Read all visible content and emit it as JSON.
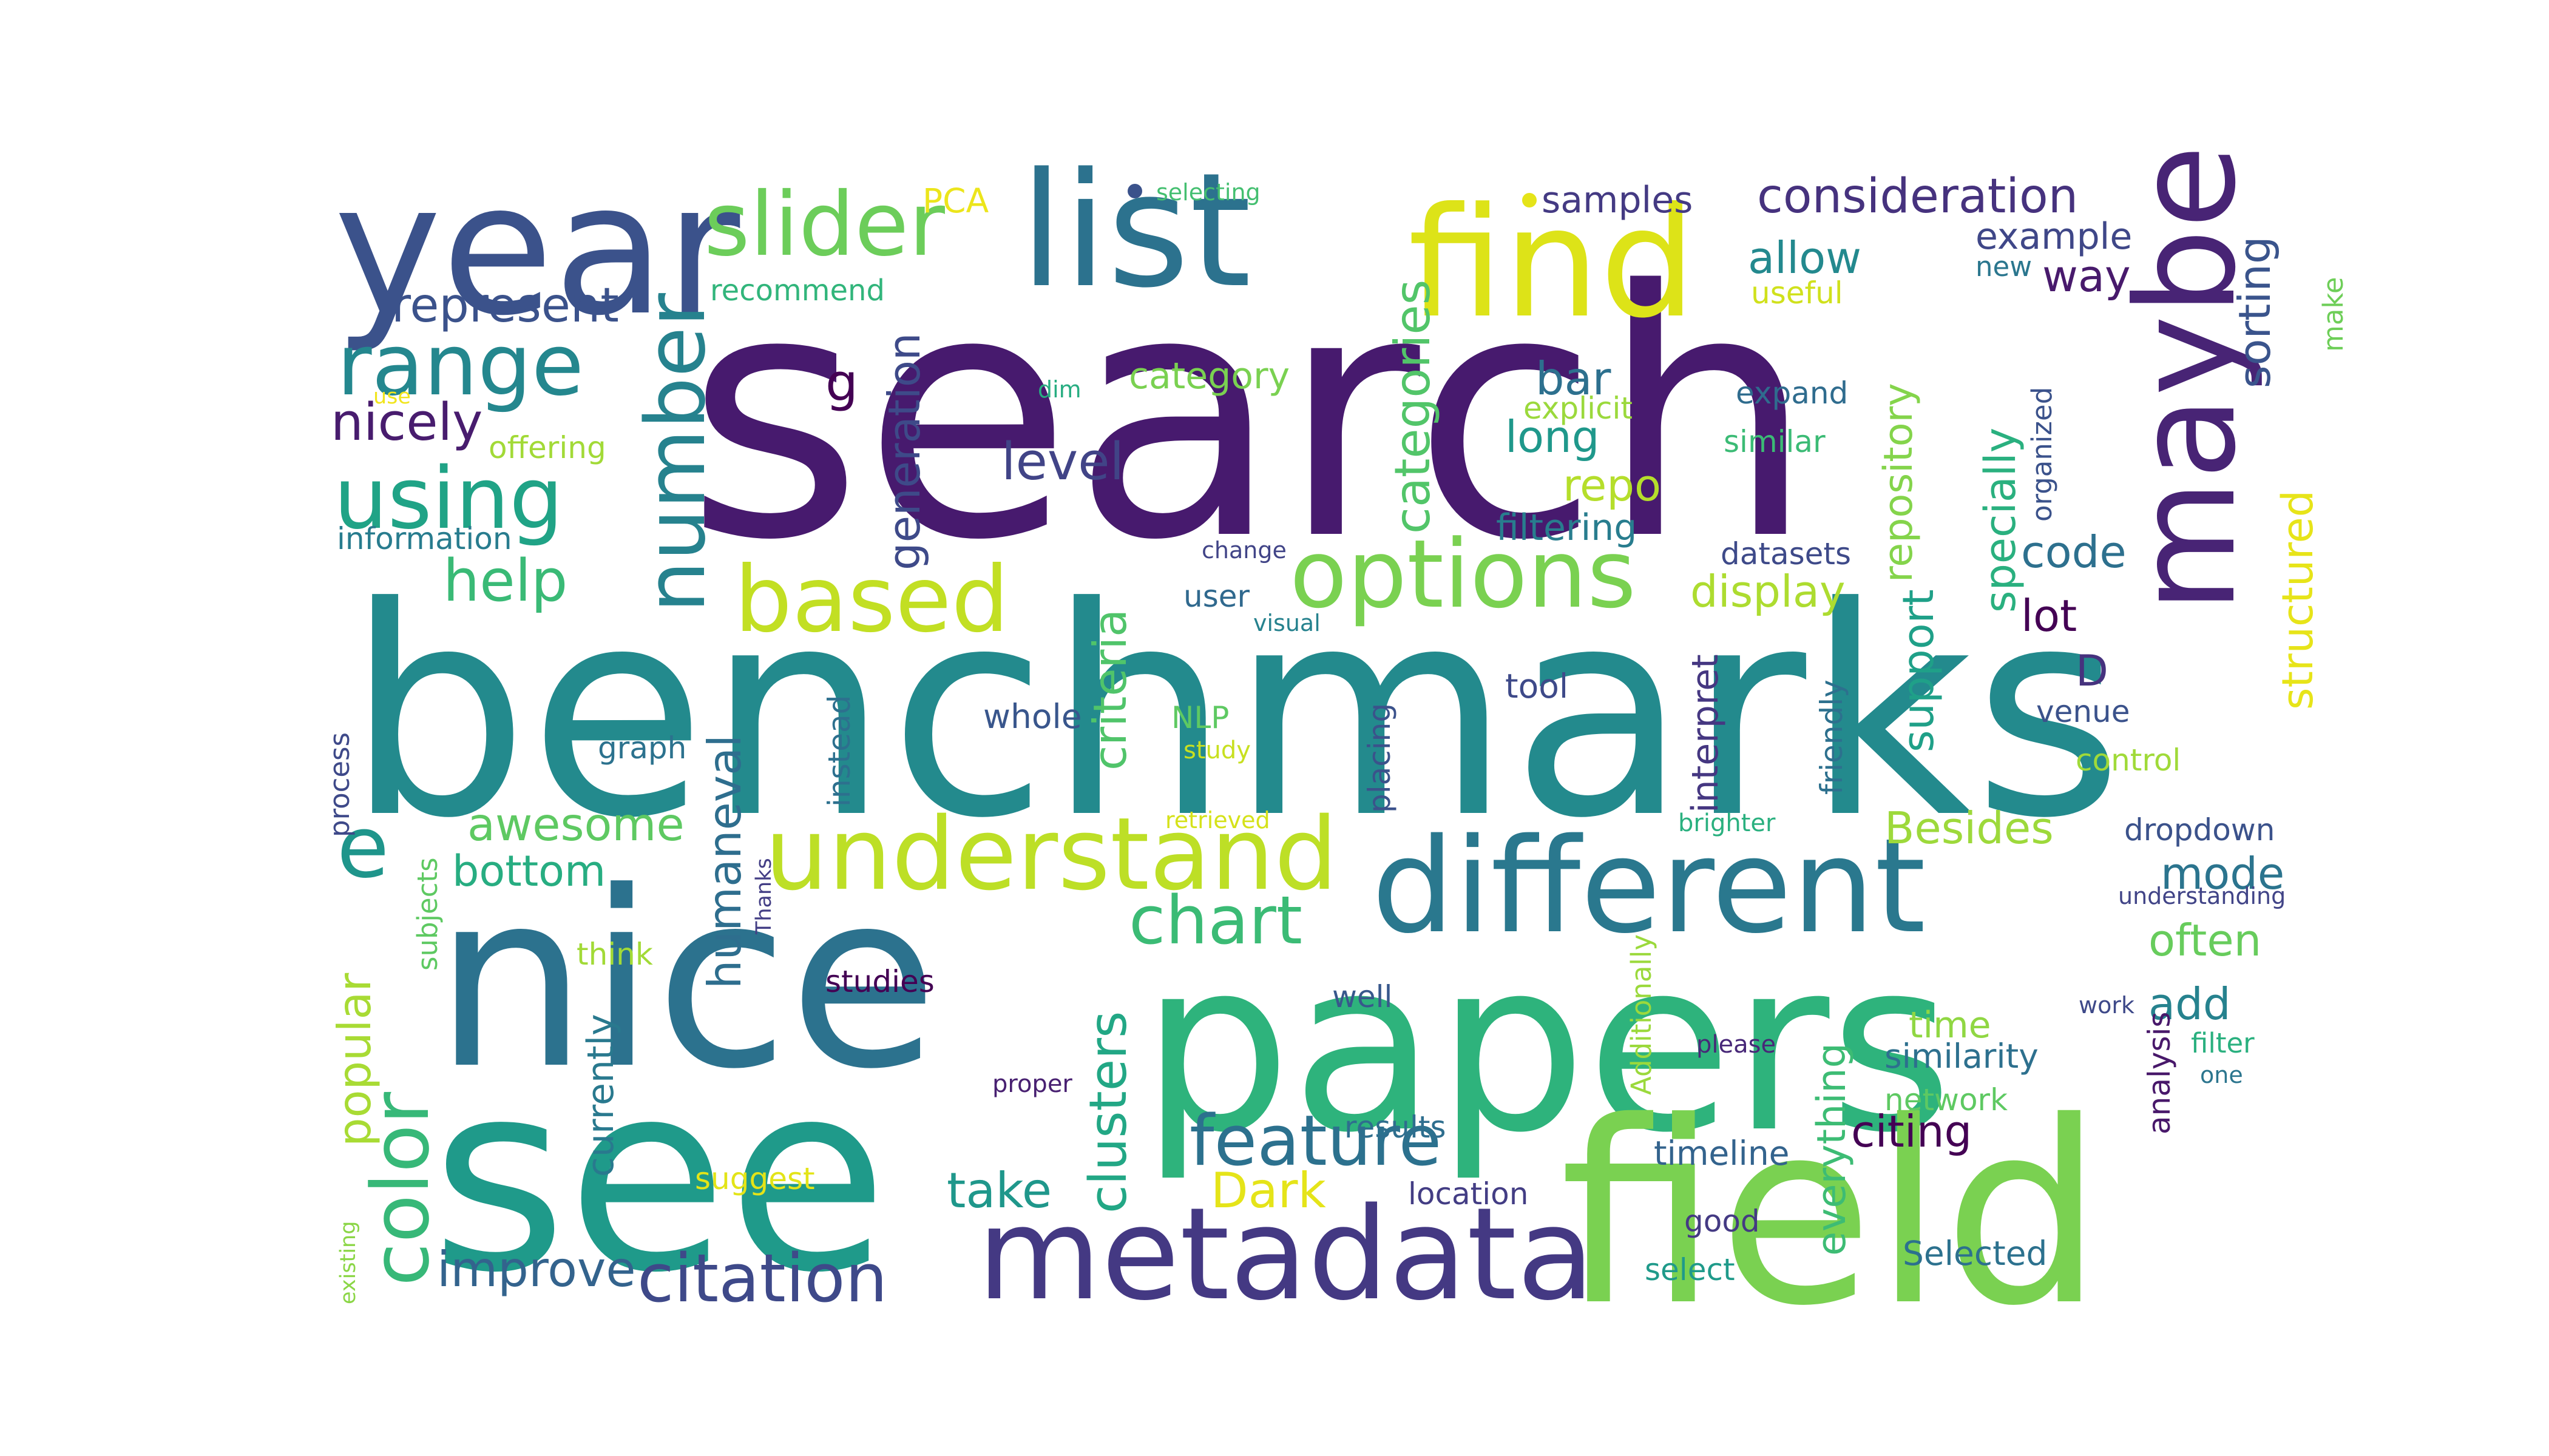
{
  "words": [
    {
      "text": "search",
      "color": "#471a6e"
    },
    {
      "text": "benchmarks",
      "color": "#238a8d"
    },
    {
      "text": "papers",
      "color": "#2eb37c"
    },
    {
      "text": "nice",
      "color": "#2c728e"
    },
    {
      "text": "see",
      "color": "#1f9a8a"
    },
    {
      "text": "field",
      "color": "#7ad151"
    },
    {
      "text": "year",
      "color": "#3b528b"
    },
    {
      "text": "metadata",
      "color": "#443983"
    },
    {
      "text": "different",
      "color": "#2a788e"
    },
    {
      "text": "find",
      "color": "#dde318"
    },
    {
      "text": "list",
      "color": "#2c728e"
    },
    {
      "text": "maybe",
      "color": "#482475"
    },
    {
      "text": "understand",
      "color": "#bddf26"
    },
    {
      "text": "options",
      "color": "#7ad151"
    },
    {
      "text": "slider",
      "color": "#6ccd5a"
    },
    {
      "text": "range",
      "color": "#24878e"
    },
    {
      "text": "using",
      "color": "#20a386"
    },
    {
      "text": "based",
      "color": "#c2df23"
    },
    {
      "text": "number",
      "color": "#26828e"
    },
    {
      "text": "e",
      "color": "#1f958b"
    },
    {
      "text": "color",
      "color": "#37b878"
    },
    {
      "text": "feature",
      "color": "#2c718e"
    },
    {
      "text": "citation",
      "color": "#3e4989"
    },
    {
      "text": "chart",
      "color": "#3bbb75"
    },
    {
      "text": "consideration",
      "color": "#46327e"
    },
    {
      "text": "help",
      "color": "#3aba76"
    },
    {
      "text": "represent",
      "color": "#3b528b"
    },
    {
      "text": "nicely",
      "color": "#481c6e"
    },
    {
      "text": "g",
      "color": "#440154"
    },
    {
      "text": "level",
      "color": "#414487"
    },
    {
      "text": "generation",
      "color": "#3e4a89"
    },
    {
      "text": "categories",
      "color": "#52c569"
    },
    {
      "text": "category",
      "color": "#7ad151"
    },
    {
      "text": "criteria",
      "color": "#50c46a"
    },
    {
      "text": "clusters",
      "color": "#22a785"
    },
    {
      "text": "humaneval",
      "color": "#2e6e8e"
    },
    {
      "text": "awesome",
      "color": "#5ec962"
    },
    {
      "text": "bottom",
      "color": "#27ad81"
    },
    {
      "text": "popular",
      "color": "#a8db34"
    },
    {
      "text": "currently",
      "color": "#29798e"
    },
    {
      "text": "improve",
      "color": "#33638d"
    },
    {
      "text": "take",
      "color": "#1f978b"
    },
    {
      "text": "Dark",
      "color": "#e5e419"
    },
    {
      "text": "samples",
      "color": "#443a83"
    },
    {
      "text": "allow",
      "color": "#23898e"
    },
    {
      "text": "way",
      "color": "#481a6c"
    },
    {
      "text": "example",
      "color": "#3f4788"
    },
    {
      "text": "sorting",
      "color": "#3a548c"
    },
    {
      "text": "make",
      "color": "#6ece58"
    },
    {
      "text": "useful",
      "color": "#d0e11c"
    },
    {
      "text": "new",
      "color": "#2a768e"
    },
    {
      "text": "bar",
      "color": "#2d708e"
    },
    {
      "text": "long",
      "color": "#1f988b"
    },
    {
      "text": "explicit",
      "color": "#9bd93c"
    },
    {
      "text": "expand",
      "color": "#2f6c8e"
    },
    {
      "text": "similar",
      "color": "#3bbb75"
    },
    {
      "text": "repository",
      "color": "#84d44b"
    },
    {
      "text": "specially",
      "color": "#2ab07f"
    },
    {
      "text": "organized",
      "color": "#3b528b"
    },
    {
      "text": "structured",
      "color": "#e7e419"
    },
    {
      "text": "repo",
      "color": "#b5de2b"
    },
    {
      "text": "filtering",
      "color": "#287d8e"
    },
    {
      "text": "datasets",
      "color": "#3e4a89"
    },
    {
      "text": "code",
      "color": "#2d708e"
    },
    {
      "text": "display",
      "color": "#addc30"
    },
    {
      "text": "lot",
      "color": "#440154"
    },
    {
      "text": "support",
      "color": "#1fa088"
    },
    {
      "text": "interpret",
      "color": "#453781"
    },
    {
      "text": "D",
      "color": "#46327e"
    },
    {
      "text": "venue",
      "color": "#3b528b"
    },
    {
      "text": "control",
      "color": "#a0da39"
    },
    {
      "text": "friendly",
      "color": "#2d708e"
    },
    {
      "text": "Besides",
      "color": "#9dd93b"
    },
    {
      "text": "brighter",
      "color": "#2ab07f"
    },
    {
      "text": "dropdown",
      "color": "#3b528b"
    },
    {
      "text": "mode",
      "color": "#2b748e"
    },
    {
      "text": "understanding",
      "color": "#414487"
    },
    {
      "text": "often",
      "color": "#67cc5c"
    },
    {
      "text": "add",
      "color": "#26828e"
    },
    {
      "text": "work",
      "color": "#3e4989"
    },
    {
      "text": "analysis",
      "color": "#48186a"
    },
    {
      "text": "filter",
      "color": "#2ab07f"
    },
    {
      "text": "one",
      "color": "#2b758e"
    },
    {
      "text": "citing",
      "color": "#440154"
    },
    {
      "text": "everything",
      "color": "#3dbc74"
    },
    {
      "text": "time",
      "color": "#90d743"
    },
    {
      "text": "similarity",
      "color": "#2d708e"
    },
    {
      "text": "network",
      "color": "#5ec962"
    },
    {
      "text": "please",
      "color": "#482878"
    },
    {
      "text": "Additionally",
      "color": "#9bd93c"
    },
    {
      "text": "timeline",
      "color": "#33638d"
    },
    {
      "text": "good",
      "color": "#443a83"
    },
    {
      "text": "select",
      "color": "#1f9a8a"
    },
    {
      "text": "Selected",
      "color": "#2c718e"
    },
    {
      "text": "results",
      "color": "#2e6e8e"
    },
    {
      "text": "location",
      "color": "#433d84"
    },
    {
      "text": "tool",
      "color": "#3e4a89"
    },
    {
      "text": "placing",
      "color": "#3b528b"
    },
    {
      "text": "whole",
      "color": "#39568c"
    },
    {
      "text": "NLP",
      "color": "#5ec962"
    },
    {
      "text": "study",
      "color": "#c8e020"
    },
    {
      "text": "user",
      "color": "#30698e"
    },
    {
      "text": "visual",
      "color": "#26828e"
    },
    {
      "text": "change",
      "color": "#414487"
    },
    {
      "text": "retrieved",
      "color": "#d5e21a"
    },
    {
      "text": "instead",
      "color": "#2d708e"
    },
    {
      "text": "graph",
      "color": "#2c728e"
    },
    {
      "text": "process",
      "color": "#3e4989"
    },
    {
      "text": "subjects",
      "color": "#5ec962"
    },
    {
      "text": "Thanks",
      "color": "#433e85"
    },
    {
      "text": "think",
      "color": "#a2da37"
    },
    {
      "text": "studies",
      "color": "#440154"
    },
    {
      "text": "well",
      "color": "#38588c"
    },
    {
      "text": "proper",
      "color": "#482071"
    },
    {
      "text": "suggest",
      "color": "#e3e418"
    },
    {
      "text": "existing",
      "color": "#8bd646"
    },
    {
      "text": "information",
      "color": "#287c8e"
    },
    {
      "text": "offering",
      "color": "#a2da37"
    },
    {
      "text": "use",
      "color": "#f1e51d"
    },
    {
      "text": "dim",
      "color": "#27ad81"
    },
    {
      "text": "recommend",
      "color": "#31b57b"
    },
    {
      "text": "PCA",
      "color": "#ece51b"
    },
    {
      "text": "selecting",
      "color": "#44bf70"
    }
  ]
}
